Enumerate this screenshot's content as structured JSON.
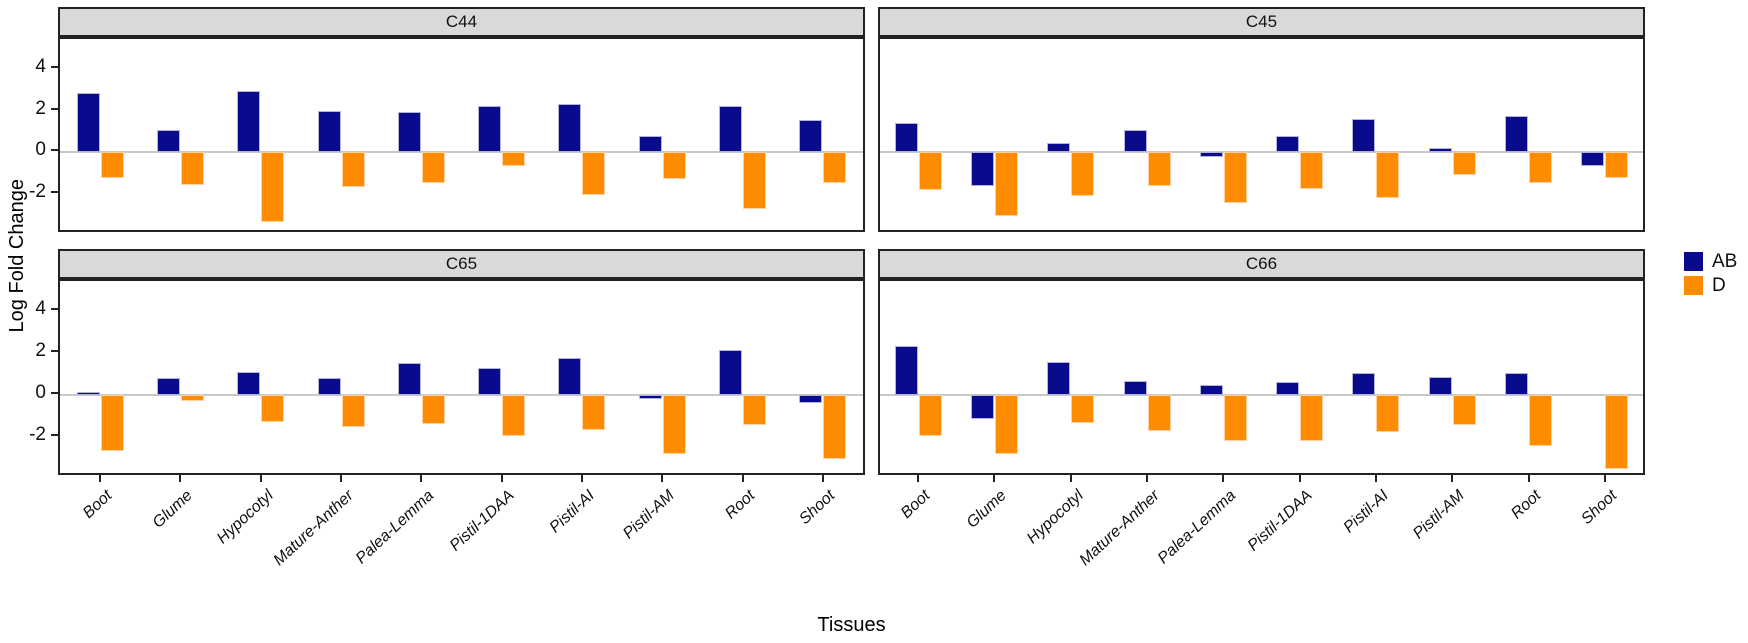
{
  "figure": {
    "y_axis_title": "Log Fold Change",
    "x_axis_title": "Tissues"
  },
  "styles": {
    "ab_color": "#0a0a8c",
    "d_color": "#ff8c00",
    "strip_bg": "#d9d9d9",
    "zero_line_color": "#c8c8c8",
    "panel_border_color": "#222222"
  },
  "chart_data": {
    "type": "bar",
    "title": "",
    "xlabel": "Tissues",
    "ylabel": "Log Fold Change",
    "grid": "zero-line-only",
    "legend_position": "right",
    "faceted": true,
    "facet_layout": [
      [
        "C44",
        "C45"
      ],
      [
        "C65",
        "C66"
      ]
    ],
    "categories": [
      "Boot",
      "Glume",
      "Hypocotyl",
      "Mature-Anther",
      "Palea-Lemma",
      "Pistil-1DAA",
      "Pistil-AI",
      "Pistil-AM",
      "Root",
      "Shoot"
    ],
    "y_ticks": [
      4,
      2,
      0,
      -2
    ],
    "ylim": [
      -3.94,
      5.45
    ],
    "series_meta": [
      {
        "name": "AB",
        "color": "#0a0a8c"
      },
      {
        "name": "D",
        "color": "#ff8c00"
      }
    ],
    "panels": [
      {
        "title": "C44",
        "series": [
          {
            "name": "AB",
            "values": [
              2.85,
              1.05,
              2.95,
              2.0,
              1.95,
              2.2,
              2.3,
              0.8,
              2.2,
              1.55
            ]
          },
          {
            "name": "D",
            "values": [
              -1.25,
              -1.6,
              -3.35,
              -1.7,
              -1.5,
              -0.65,
              -2.05,
              -1.3,
              -2.75,
              -1.5
            ]
          }
        ]
      },
      {
        "title": "C45",
        "series": [
          {
            "name": "AB",
            "values": [
              1.4,
              -1.65,
              0.45,
              1.05,
              -0.25,
              0.8,
              1.6,
              0.2,
              1.75,
              -0.65
            ]
          },
          {
            "name": "D",
            "values": [
              -1.8,
              -3.05,
              -2.1,
              -1.65,
              -2.45,
              -1.75,
              -2.2,
              -1.1,
              -1.5,
              -1.25
            ]
          }
        ]
      },
      {
        "title": "C65",
        "series": [
          {
            "name": "AB",
            "values": [
              0.15,
              0.8,
              1.1,
              0.8,
              1.5,
              1.3,
              1.75,
              -0.2,
              2.15,
              -0.4
            ]
          },
          {
            "name": "D",
            "values": [
              -2.7,
              -0.3,
              -1.3,
              -1.55,
              -1.4,
              -2.0,
              -1.7,
              -2.85,
              -1.45,
              -3.1
            ]
          }
        ]
      },
      {
        "title": "C66",
        "series": [
          {
            "name": "AB",
            "values": [
              2.35,
              -1.15,
              1.55,
              0.65,
              0.45,
              0.6,
              1.05,
              0.85,
              1.05,
              0
            ]
          },
          {
            "name": "D",
            "values": [
              -2.0,
              -2.85,
              -1.35,
              -1.75,
              -2.2,
              -2.2,
              -1.8,
              -1.45,
              -2.45,
              -3.55
            ]
          }
        ]
      }
    ]
  }
}
